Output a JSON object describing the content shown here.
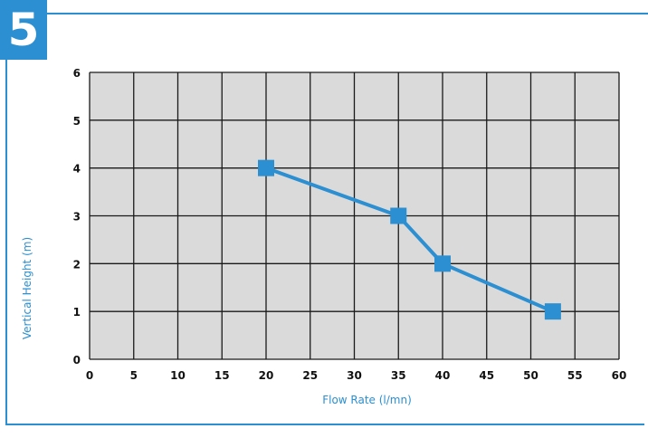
{
  "badge": "5",
  "colors": {
    "accent": "#2b8fd1",
    "plot_background": "#dadada",
    "grid": "#1a1a1a"
  },
  "chart_data": {
    "type": "line",
    "title": "",
    "xlabel": "Flow Rate (l/mn)",
    "ylabel": "Vertical Height (m)",
    "xlim": [
      0,
      60
    ],
    "ylim": [
      0,
      6
    ],
    "xticks": [
      0,
      5,
      10,
      15,
      20,
      25,
      30,
      35,
      40,
      45,
      50,
      55,
      60
    ],
    "yticks": [
      0,
      1,
      2,
      3,
      4,
      5,
      6
    ],
    "grid": true,
    "legend": "none",
    "series": [
      {
        "color": "#2b8fd1",
        "marker": "square",
        "x": [
          20,
          35,
          40,
          52.5
        ],
        "y": [
          4,
          3,
          2,
          1
        ]
      }
    ]
  }
}
